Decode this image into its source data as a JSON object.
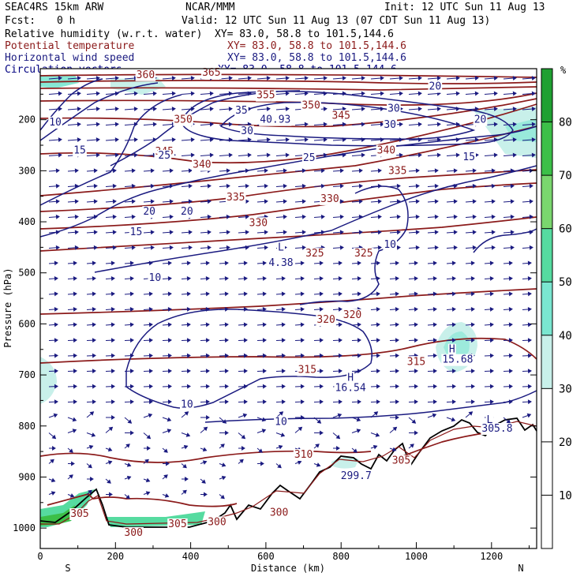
{
  "header": {
    "model": "SEAC4RS 15km ARW",
    "center": "NCAR/MMM",
    "init": "Init: 12 UTC Sun 11 Aug 13",
    "fcst_label": "Fcst:",
    "fcst_value": "0 h",
    "valid": "Valid: 12 UTC Sun 11 Aug 13 (07 CDT Sun 11 Aug 13)",
    "fields": [
      {
        "name": "Relative humidity (w.r.t. water)",
        "xy": "XY=  83.0, 58.8 to 101.5,144.6",
        "color": "#000000"
      },
      {
        "name": "Potential temperature",
        "xy": "XY=  83.0, 58.8 to 101.5,144.6",
        "color": "#8b1a1a"
      },
      {
        "name": "Horizontal wind speed",
        "xy": "XY=  83.0, 58.8 to 101.5,144.6",
        "color": "#1a1a80"
      },
      {
        "name": "Circulation vectors",
        "xy": "XY=  83.0, 58.8 to 101.5,144.6",
        "color": "#000080"
      }
    ]
  },
  "chart_data": {
    "type": "heatmap",
    "title": "",
    "xlabel": "Distance (km)",
    "ylabel": "Pressure (hPa)",
    "x_ticks": [
      0,
      200,
      400,
      600,
      800,
      1000,
      1200
    ],
    "y_ticks": [
      200,
      300,
      400,
      500,
      600,
      700,
      800,
      900,
      1000
    ],
    "xlim": [
      0,
      1320
    ],
    "ylim": [
      1040,
      100
    ],
    "x_end_labels": {
      "left": "S",
      "right": "N"
    },
    "colorbar": {
      "unit": "%",
      "ticks": [
        10,
        20,
        30,
        40,
        50,
        60,
        70,
        80
      ],
      "shaded_levels": [
        {
          "from": 30,
          "to": 40,
          "color": "#c8f0ea"
        },
        {
          "from": 40,
          "to": 50,
          "color": "#7ae6d0"
        },
        {
          "from": 50,
          "to": 60,
          "color": "#56dba0"
        },
        {
          "from": 60,
          "to": 70,
          "color": "#7ad66e"
        },
        {
          "from": 70,
          "to": 80,
          "color": "#3cbf48"
        },
        {
          "from": 80,
          "to": 90,
          "color": "#1fa032"
        }
      ]
    },
    "theta_labels": [
      {
        "text": "365",
        "x": 455,
        "p": 108
      },
      {
        "text": "360",
        "x": 280,
        "p": 112
      },
      {
        "text": "350",
        "x": 380,
        "p": 200
      },
      {
        "text": "355",
        "x": 600,
        "p": 152
      },
      {
        "text": "350",
        "x": 720,
        "p": 172
      },
      {
        "text": "345",
        "x": 330,
        "p": 262
      },
      {
        "text": "345",
        "x": 800,
        "p": 192
      },
      {
        "text": "340",
        "x": 430,
        "p": 288
      },
      {
        "text": "340",
        "x": 920,
        "p": 260
      },
      {
        "text": "335",
        "x": 520,
        "p": 352
      },
      {
        "text": "335",
        "x": 950,
        "p": 300
      },
      {
        "text": "330",
        "x": 580,
        "p": 402
      },
      {
        "text": "330",
        "x": 770,
        "p": 355
      },
      {
        "text": "325",
        "x": 730,
        "p": 462
      },
      {
        "text": "325",
        "x": 860,
        "p": 462
      },
      {
        "text": "320",
        "x": 760,
        "p": 592
      },
      {
        "text": "320",
        "x": 830,
        "p": 582
      },
      {
        "text": "315",
        "x": 710,
        "p": 690
      },
      {
        "text": "315",
        "x": 1000,
        "p": 674
      },
      {
        "text": "310",
        "x": 700,
        "p": 856
      },
      {
        "text": "305",
        "x": 960,
        "p": 868
      },
      {
        "text": "305",
        "x": 365,
        "p": 992
      },
      {
        "text": "305",
        "x": 105,
        "p": 972
      },
      {
        "text": "300",
        "x": 248,
        "p": 1009
      },
      {
        "text": "300",
        "x": 470,
        "p": 988
      },
      {
        "text": "300",
        "x": 635,
        "p": 970
      }
    ],
    "wind_labels": [
      {
        "text": "10",
        "x": 40,
        "p": 205
      },
      {
        "text": "15",
        "x": 105,
        "p": 260
      },
      {
        "text": "20",
        "x": 290,
        "p": 380
      },
      {
        "text": "25",
        "x": 330,
        "p": 270
      },
      {
        "text": "20",
        "x": 390,
        "p": 380
      },
      {
        "text": "15",
        "x": 255,
        "p": 420
      },
      {
        "text": "10",
        "x": 305,
        "p": 510
      },
      {
        "text": "30",
        "x": 550,
        "p": 222
      },
      {
        "text": "35",
        "x": 535,
        "p": 182
      },
      {
        "text": "25",
        "x": 715,
        "p": 275
      },
      {
        "text": "30",
        "x": 930,
        "p": 210
      },
      {
        "text": "30",
        "x": 940,
        "p": 178
      },
      {
        "text": "15",
        "x": 1140,
        "p": 273
      },
      {
        "text": "10",
        "x": 930,
        "p": 445
      },
      {
        "text": "10",
        "x": 390,
        "p": 758
      },
      {
        "text": "10",
        "x": 640,
        "p": 792
      },
      {
        "text": "20",
        "x": 1170,
        "p": 200
      },
      {
        "text": "20",
        "x": 1050,
        "p": 135
      }
    ],
    "extrema": [
      {
        "text": "40.93",
        "x": 625,
        "p": 200
      },
      {
        "text": "L",
        "x": 640,
        "p": 450
      },
      {
        "text": "4.38",
        "x": 640,
        "p": 480
      },
      {
        "text": "H",
        "x": 825,
        "p": 705
      },
      {
        "text": "16.54",
        "x": 825,
        "p": 725
      },
      {
        "text": "H",
        "x": 1095,
        "p": 650
      },
      {
        "text": "15.68",
        "x": 1110,
        "p": 670
      },
      {
        "text": "L",
        "x": 1195,
        "p": 788
      },
      {
        "text": "305.8",
        "x": 1215,
        "p": 805
      },
      {
        "text": "299.7",
        "x": 840,
        "p": 898
      }
    ]
  }
}
